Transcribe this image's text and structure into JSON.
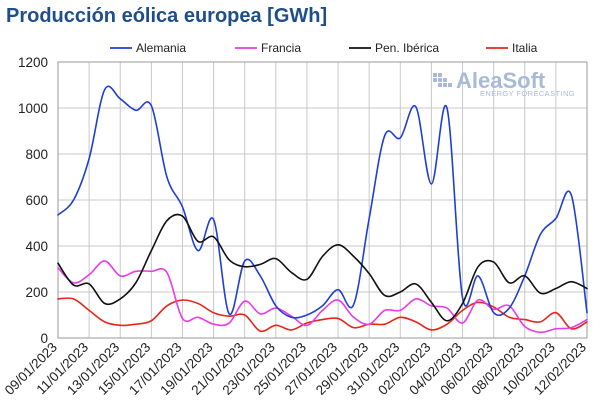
{
  "chart_data": {
    "type": "line",
    "title": "Producción eólica europea [GWh]",
    "ylim": [
      0,
      1200
    ],
    "yticks": [
      0,
      200,
      400,
      600,
      800,
      1000,
      1200
    ],
    "grid": true,
    "legend_position": "top",
    "categories": [
      "09/01/2023",
      "10/01/2023",
      "11/01/2023",
      "12/01/2023",
      "13/01/2023",
      "14/01/2023",
      "15/01/2023",
      "16/01/2023",
      "17/01/2023",
      "18/01/2023",
      "19/01/2023",
      "20/01/2023",
      "21/01/2023",
      "22/01/2023",
      "23/01/2023",
      "24/01/2023",
      "25/01/2023",
      "26/01/2023",
      "27/01/2023",
      "28/01/2023",
      "29/01/2023",
      "30/01/2023",
      "31/01/2023",
      "01/02/2023",
      "02/02/2023",
      "03/02/2023",
      "04/02/2023",
      "05/02/2023",
      "06/02/2023",
      "07/02/2023",
      "08/02/2023",
      "09/02/2023",
      "10/02/2023",
      "11/02/2023",
      "12/02/2023"
    ],
    "xtick_labels": [
      "09/01/2023",
      "11/01/2023",
      "13/01/2023",
      "15/01/2023",
      "17/01/2023",
      "19/01/2023",
      "21/01/2023",
      "23/01/2023",
      "25/01/2023",
      "27/01/2023",
      "29/01/2023",
      "31/01/2023",
      "02/02/2023",
      "04/02/2023",
      "06/02/2023",
      "08/02/2023",
      "10/02/2023",
      "12/02/2023"
    ],
    "series": [
      {
        "name": "Alemania",
        "color": "#1f3fd0",
        "values": [
          535,
          600,
          780,
          1080,
          1040,
          990,
          1010,
          700,
          570,
          380,
          515,
          105,
          335,
          270,
          140,
          90,
          100,
          140,
          210,
          145,
          520,
          880,
          870,
          1005,
          670,
          1000,
          175,
          270,
          110,
          130,
          270,
          450,
          520,
          620,
          110
        ]
      },
      {
        "name": "Francia",
        "color": "#e83ce8",
        "values": [
          305,
          240,
          275,
          335,
          270,
          290,
          290,
          285,
          85,
          90,
          60,
          65,
          160,
          105,
          130,
          95,
          55,
          120,
          165,
          90,
          60,
          120,
          120,
          170,
          140,
          130,
          65,
          165,
          125,
          140,
          50,
          25,
          40,
          45,
          80
        ]
      },
      {
        "name": "Pen. Ibérica",
        "color": "#111111",
        "values": [
          325,
          230,
          235,
          150,
          170,
          240,
          380,
          510,
          530,
          420,
          440,
          340,
          310,
          320,
          345,
          285,
          255,
          355,
          405,
          355,
          280,
          185,
          200,
          235,
          155,
          75,
          150,
          310,
          330,
          240,
          270,
          195,
          215,
          245,
          215
        ]
      },
      {
        "name": "Italia",
        "color": "#e8261a",
        "values": [
          170,
          170,
          120,
          70,
          55,
          60,
          75,
          140,
          165,
          150,
          110,
          95,
          100,
          30,
          55,
          35,
          65,
          80,
          85,
          45,
          60,
          60,
          90,
          70,
          35,
          60,
          120,
          155,
          135,
          90,
          80,
          70,
          110,
          40,
          70
        ]
      }
    ]
  },
  "watermark": {
    "name": "AleaSoft",
    "tagline": "ENERGY FORECASTING"
  }
}
